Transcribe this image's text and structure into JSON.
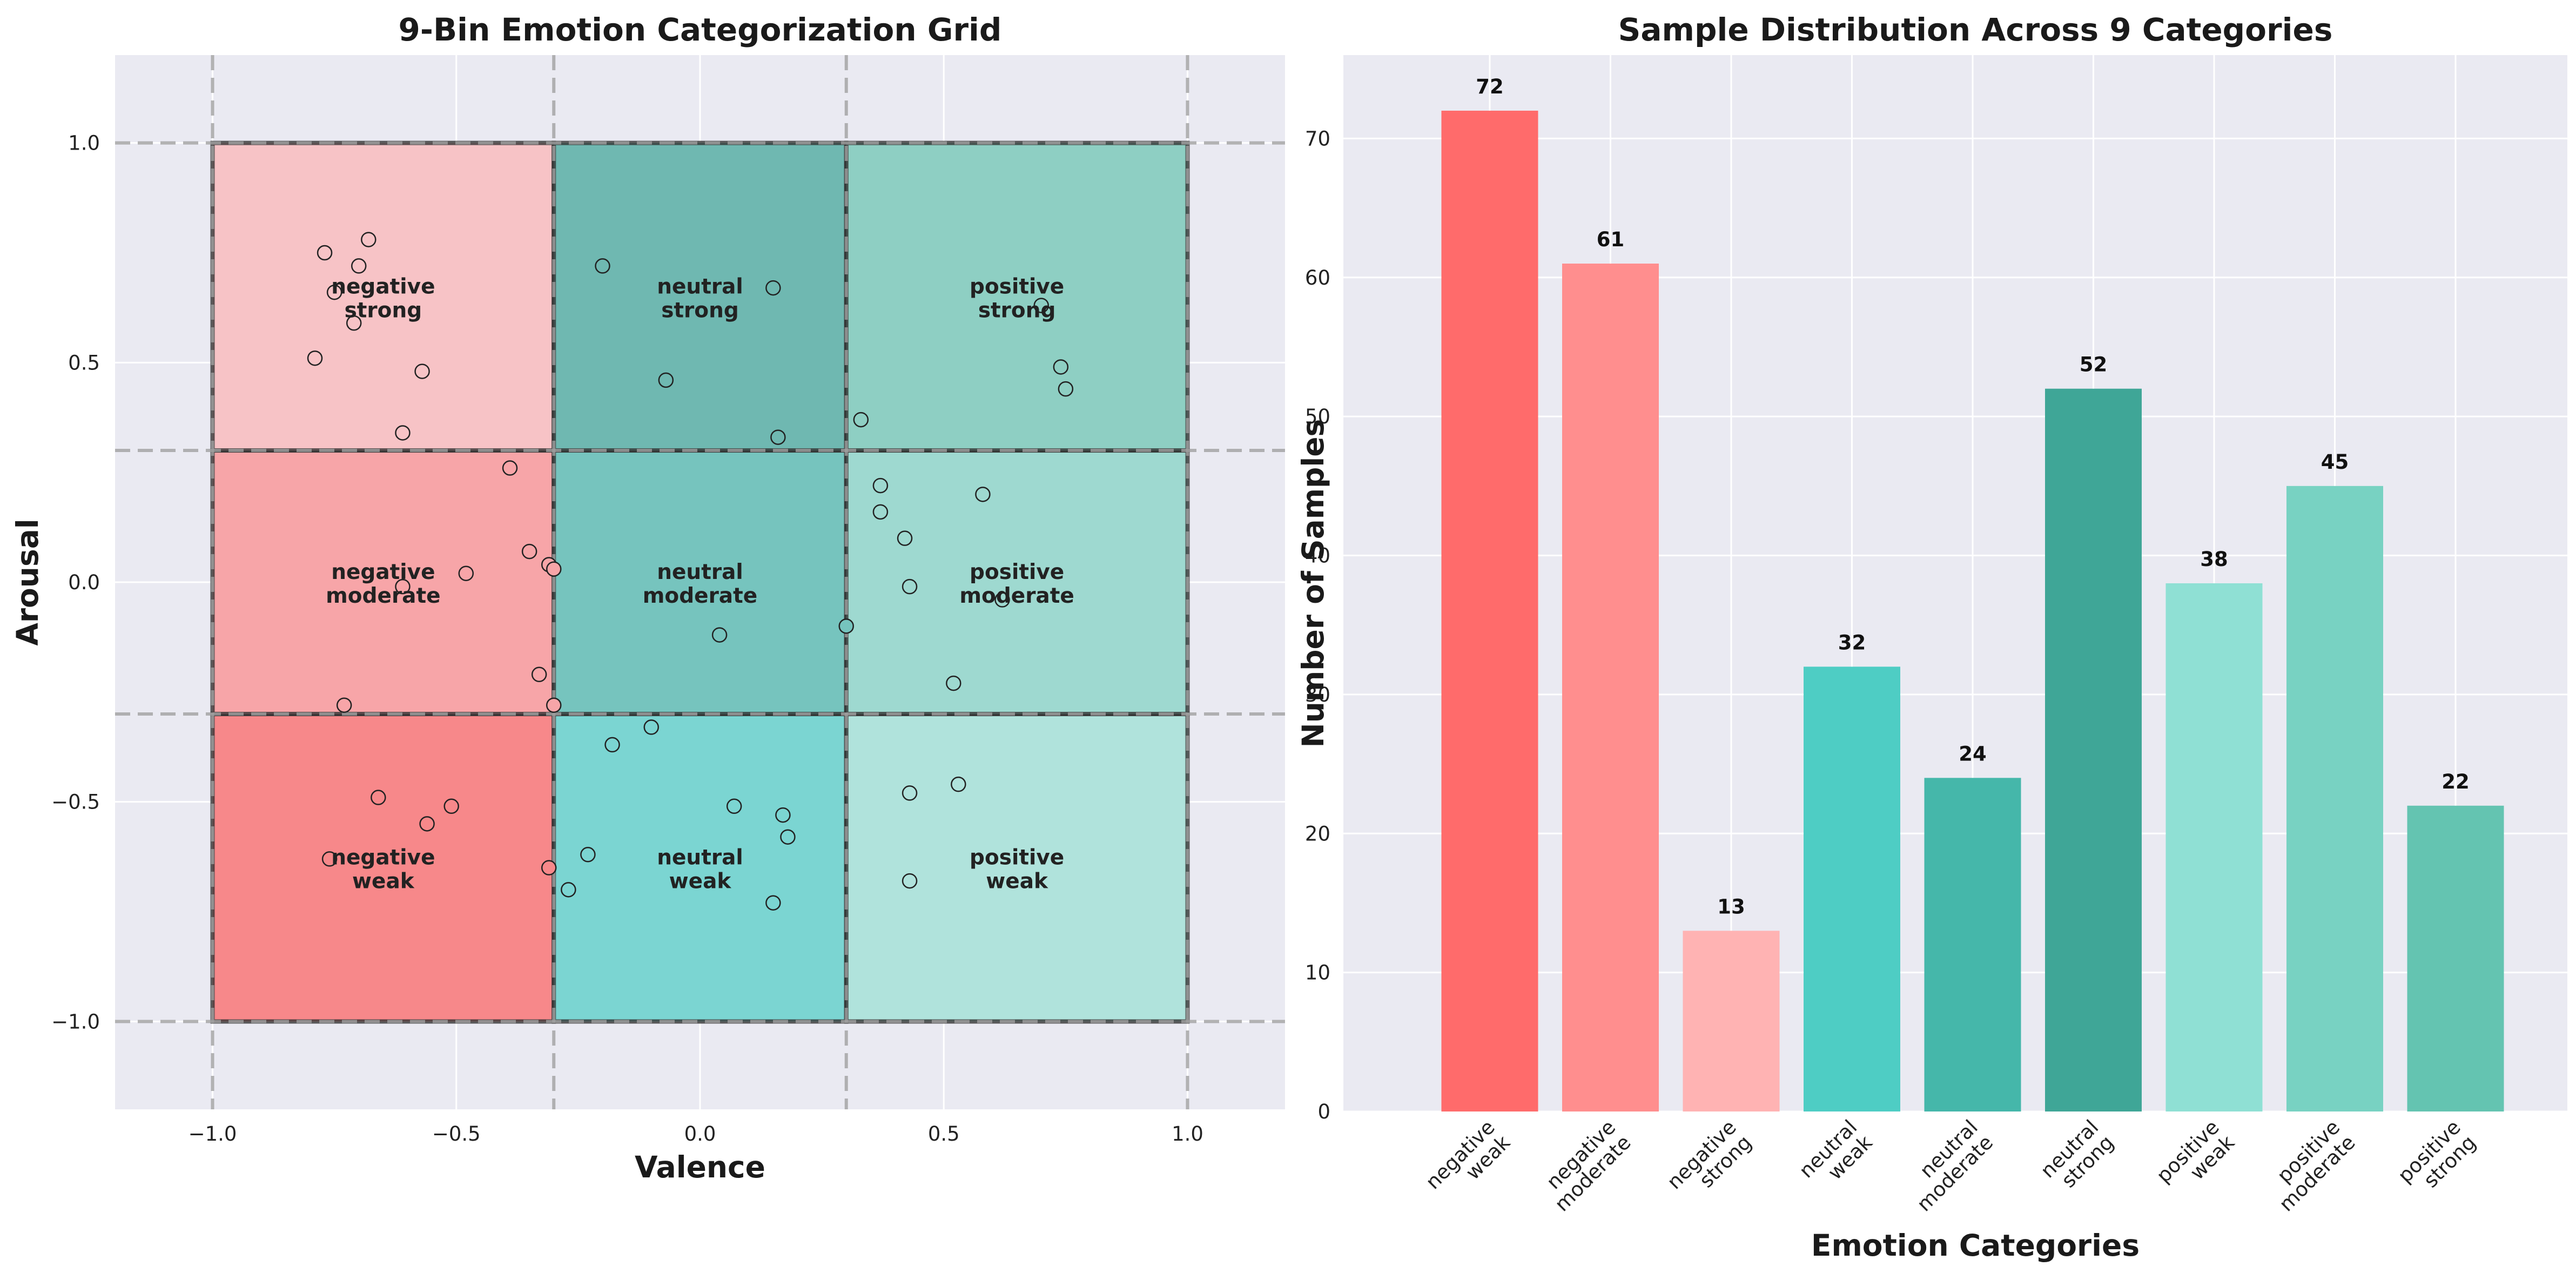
{
  "chart_data": [
    {
      "type": "scatter",
      "title": "9-Bin Emotion Categorization Grid",
      "xlabel": "Valence",
      "ylabel": "Arousal",
      "xlim": [
        -1.2,
        1.2
      ],
      "ylim": [
        -1.2,
        1.2
      ],
      "xticks": [
        "−1.0",
        "−0.5",
        "0.0",
        "0.5",
        "1.0"
      ],
      "yticks": [
        "−1.0",
        "−0.5",
        "0.0",
        "0.5",
        "1.0"
      ],
      "xtick_values": [
        -1.0,
        -0.5,
        0.0,
        0.5,
        1.0
      ],
      "ytick_values": [
        -1.0,
        -0.5,
        0.0,
        0.5,
        1.0
      ],
      "grid": true,
      "bin_edges_valence": [
        -1.0,
        -0.3,
        0.3,
        1.0
      ],
      "bin_edges_arousal": [
        -1.0,
        -0.3,
        0.3,
        1.0
      ],
      "cells": [
        {
          "label": [
            "negative",
            "weak"
          ],
          "color": "#f7888a",
          "valence": [
            -1.0,
            -0.3
          ],
          "arousal": [
            -1.0,
            -0.3
          ]
        },
        {
          "label": [
            "negative",
            "moderate"
          ],
          "color": "#f7a5a8",
          "valence": [
            -1.0,
            -0.3
          ],
          "arousal": [
            -0.3,
            0.3
          ]
        },
        {
          "label": [
            "negative",
            "strong"
          ],
          "color": "#f7c3c6",
          "valence": [
            -1.0,
            -0.3
          ],
          "arousal": [
            0.3,
            1.0
          ]
        },
        {
          "label": [
            "neutral",
            "weak"
          ],
          "color": "#7bd5d2",
          "valence": [
            -0.3,
            0.3
          ],
          "arousal": [
            -1.0,
            -0.3
          ]
        },
        {
          "label": [
            "neutral",
            "moderate"
          ],
          "color": "#76c4be",
          "valence": [
            -0.3,
            0.3
          ],
          "arousal": [
            -0.3,
            0.3
          ]
        },
        {
          "label": [
            "neutral",
            "strong"
          ],
          "color": "#6fb8b1",
          "valence": [
            -0.3,
            0.3
          ],
          "arousal": [
            0.3,
            1.0
          ]
        },
        {
          "label": [
            "positive",
            "weak"
          ],
          "color": "#b0e3dc",
          "valence": [
            0.3,
            1.0
          ],
          "arousal": [
            -1.0,
            -0.3
          ]
        },
        {
          "label": [
            "positive",
            "moderate"
          ],
          "color": "#9ed9d0",
          "valence": [
            0.3,
            1.0
          ],
          "arousal": [
            -0.3,
            0.3
          ]
        },
        {
          "label": [
            "positive",
            "strong"
          ],
          "color": "#8ecfc3",
          "valence": [
            0.3,
            1.0
          ],
          "arousal": [
            0.3,
            1.0
          ]
        }
      ],
      "points": [
        {
          "x": -0.77,
          "y": 0.75
        },
        {
          "x": -0.68,
          "y": 0.78
        },
        {
          "x": -0.7,
          "y": 0.72
        },
        {
          "x": -0.75,
          "y": 0.66
        },
        {
          "x": -0.71,
          "y": 0.59
        },
        {
          "x": -0.79,
          "y": 0.51
        },
        {
          "x": -0.57,
          "y": 0.48
        },
        {
          "x": -0.61,
          "y": 0.34
        },
        {
          "x": -0.2,
          "y": 0.72
        },
        {
          "x": 0.15,
          "y": 0.67
        },
        {
          "x": -0.07,
          "y": 0.46
        },
        {
          "x": 0.16,
          "y": 0.33
        },
        {
          "x": 0.7,
          "y": 0.63
        },
        {
          "x": 0.74,
          "y": 0.49
        },
        {
          "x": 0.75,
          "y": 0.44
        },
        {
          "x": 0.33,
          "y": 0.37
        },
        {
          "x": -0.39,
          "y": 0.26
        },
        {
          "x": -0.35,
          "y": 0.07
        },
        {
          "x": -0.31,
          "y": 0.04
        },
        {
          "x": -0.3,
          "y": 0.03
        },
        {
          "x": -0.48,
          "y": 0.02
        },
        {
          "x": -0.61,
          "y": -0.01
        },
        {
          "x": -0.33,
          "y": -0.21
        },
        {
          "x": -0.3,
          "y": -0.28
        },
        {
          "x": -0.73,
          "y": -0.28
        },
        {
          "x": 0.04,
          "y": -0.12
        },
        {
          "x": 0.3,
          "y": -0.1
        },
        {
          "x": 0.37,
          "y": 0.22
        },
        {
          "x": 0.58,
          "y": 0.2
        },
        {
          "x": 0.37,
          "y": 0.16
        },
        {
          "x": 0.42,
          "y": 0.1
        },
        {
          "x": 0.43,
          "y": -0.01
        },
        {
          "x": 0.62,
          "y": -0.04
        },
        {
          "x": 0.52,
          "y": -0.23
        },
        {
          "x": -0.1,
          "y": -0.33
        },
        {
          "x": -0.18,
          "y": -0.37
        },
        {
          "x": 0.07,
          "y": -0.51
        },
        {
          "x": 0.17,
          "y": -0.53
        },
        {
          "x": 0.18,
          "y": -0.58
        },
        {
          "x": -0.23,
          "y": -0.62
        },
        {
          "x": -0.27,
          "y": -0.7
        },
        {
          "x": 0.15,
          "y": -0.73
        },
        {
          "x": -0.66,
          "y": -0.49
        },
        {
          "x": -0.51,
          "y": -0.51
        },
        {
          "x": -0.56,
          "y": -0.55
        },
        {
          "x": -0.76,
          "y": -0.63
        },
        {
          "x": -0.31,
          "y": -0.65
        },
        {
          "x": 0.53,
          "y": -0.46
        },
        {
          "x": 0.43,
          "y": -0.48
        },
        {
          "x": 0.43,
          "y": -0.68
        }
      ]
    },
    {
      "type": "bar",
      "title": "Sample Distribution Across 9 Categories",
      "xlabel": "Emotion Categories",
      "ylabel": "Number of Samples",
      "ylim": [
        0,
        76
      ],
      "yticks": [
        0,
        10,
        20,
        30,
        40,
        50,
        60,
        70
      ],
      "grid": true,
      "categories": [
        [
          "negative",
          "weak"
        ],
        [
          "negative",
          "moderate"
        ],
        [
          "negative",
          "strong"
        ],
        [
          "neutral",
          "weak"
        ],
        [
          "neutral",
          "moderate"
        ],
        [
          "neutral",
          "strong"
        ],
        [
          "positive",
          "weak"
        ],
        [
          "positive",
          "moderate"
        ],
        [
          "positive",
          "strong"
        ]
      ],
      "values": [
        72,
        61,
        13,
        32,
        24,
        52,
        38,
        45,
        22
      ],
      "colors": [
        "#ff6b6b",
        "#ff8e8e",
        "#ffb3b3",
        "#4ecdc4",
        "#45b7aa",
        "#3fa697",
        "#8fe0d4",
        "#78d2c2",
        "#64c4b1"
      ]
    }
  ]
}
